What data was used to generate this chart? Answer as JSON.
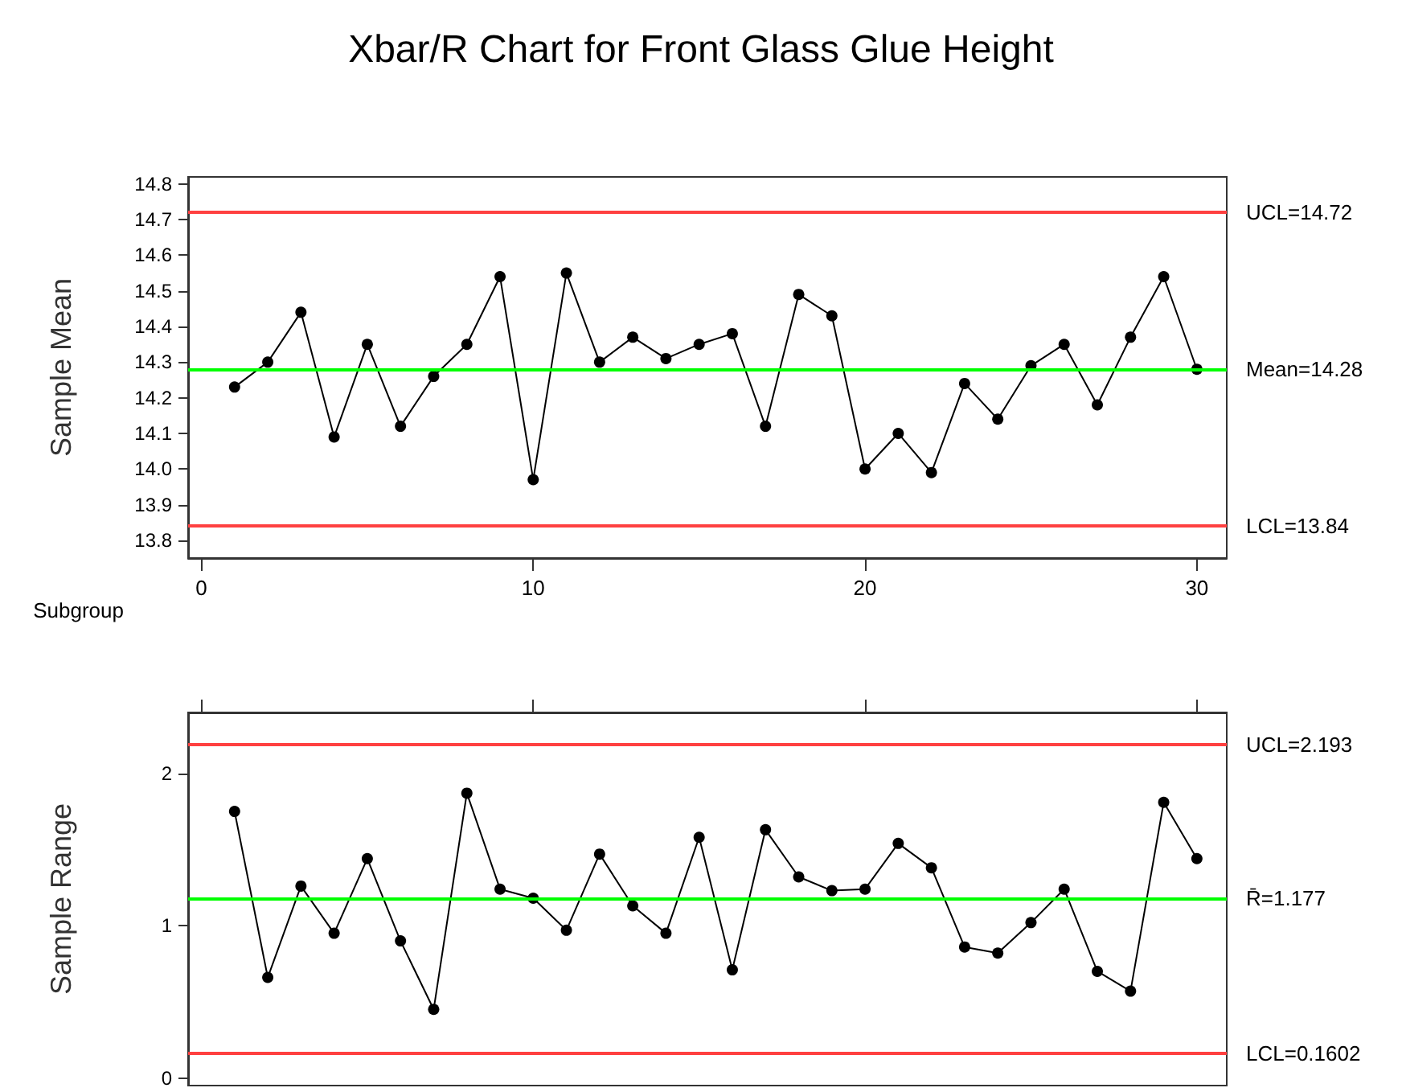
{
  "chart_data": [
    {
      "type": "line",
      "title": "Xbar/R Chart for Front Glass Glue Height",
      "xlabel": "Subgroup",
      "ylabel": "Sample Mean",
      "x": [
        1,
        2,
        3,
        4,
        5,
        6,
        7,
        8,
        9,
        10,
        11,
        12,
        13,
        14,
        15,
        16,
        17,
        18,
        19,
        20,
        21,
        22,
        23,
        24,
        25,
        26,
        27,
        28,
        29,
        30
      ],
      "series": [
        {
          "color": "#000000",
          "values": [
            14.23,
            14.3,
            14.44,
            14.09,
            14.35,
            14.12,
            14.26,
            14.35,
            14.54,
            13.97,
            14.55,
            14.3,
            14.37,
            14.31,
            14.35,
            14.38,
            14.12,
            14.49,
            14.43,
            14.0,
            14.1,
            13.99,
            14.24,
            14.14,
            14.29,
            14.35,
            14.18,
            14.37,
            14.54,
            14.28
          ]
        }
      ],
      "xlim": [
        -0.4,
        30.9
      ],
      "xticks": [
        0,
        10,
        20,
        30
      ],
      "ylim": [
        13.75,
        14.82
      ],
      "yticks": [
        13.8,
        13.9,
        {
          "value": 14,
          "label": "14.0"
        },
        14.1,
        14.2,
        14.3,
        14.4,
        14.5,
        14.6,
        14.7,
        14.8
      ],
      "ref_lines": [
        {
          "axis": "y",
          "value": 14.72,
          "label": "UCL=14.72",
          "color": "#ff4040"
        },
        {
          "axis": "y",
          "value": 14.28,
          "label": "Mean=14.28",
          "color": "#00ff00"
        },
        {
          "axis": "y",
          "value": 13.84,
          "label": "LCL=13.84",
          "color": "#ff4040"
        }
      ],
      "marker": "circle",
      "line_style": "solid",
      "grid": false
    },
    {
      "type": "line",
      "ylabel": "Sample Range",
      "x": [
        1,
        2,
        3,
        4,
        5,
        6,
        7,
        8,
        9,
        10,
        11,
        12,
        13,
        14,
        15,
        16,
        17,
        18,
        19,
        20,
        21,
        22,
        23,
        24,
        25,
        26,
        27,
        28,
        29,
        30
      ],
      "series": [
        {
          "color": "#000000",
          "values": [
            1.75,
            0.66,
            1.26,
            0.95,
            1.44,
            0.9,
            0.45,
            1.87,
            1.24,
            1.18,
            0.97,
            1.47,
            1.13,
            0.95,
            1.58,
            0.71,
            1.63,
            1.32,
            1.23,
            1.24,
            1.54,
            1.38,
            0.86,
            0.82,
            1.02,
            1.24,
            0.7,
            0.57,
            1.81,
            1.44
          ]
        }
      ],
      "xlim": [
        -0.4,
        30.9
      ],
      "xticks": [
        {
          "value": 0,
          "label": null
        },
        {
          "value": 10,
          "label": null
        },
        {
          "value": 20,
          "label": null
        },
        {
          "value": 30,
          "label": null
        }
      ],
      "ylim": [
        -0.05,
        2.4
      ],
      "yticks": [
        0,
        1,
        2
      ],
      "ref_lines": [
        {
          "axis": "y",
          "value": 2.193,
          "label": "UCL=2.193",
          "color": "#ff4040"
        },
        {
          "axis": "y",
          "value": 1.177,
          "label": "R̄=1.177",
          "color": "#00ff00"
        },
        {
          "axis": "y",
          "value": 0.1602,
          "label": "LCL=0.1602",
          "color": "#ff4040"
        }
      ],
      "marker": "circle",
      "line_style": "solid",
      "grid": false,
      "tick_labels": "y"
    }
  ]
}
